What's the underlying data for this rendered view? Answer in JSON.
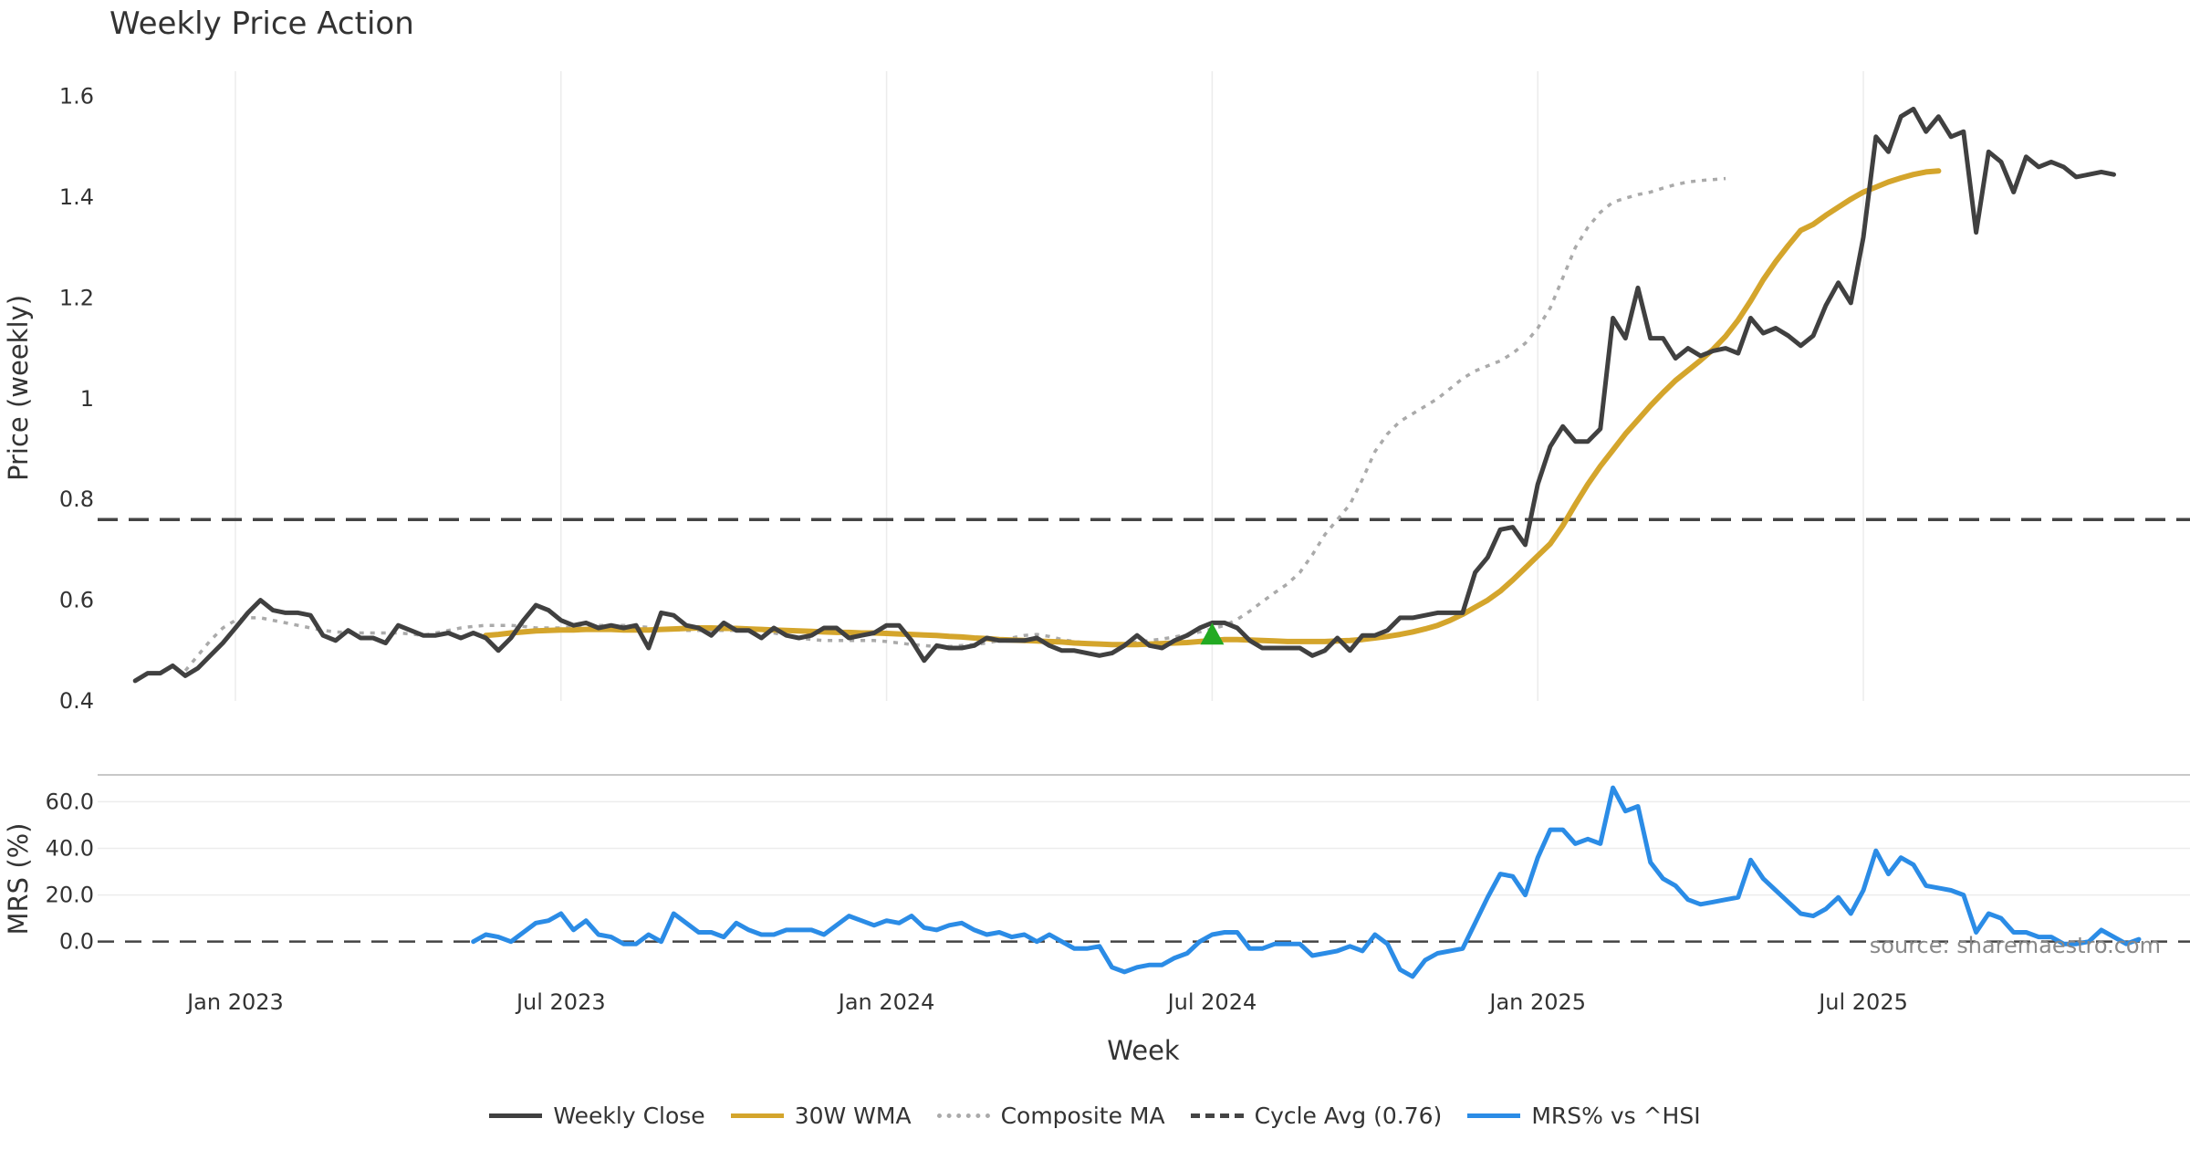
{
  "chart_data": {
    "type": "line",
    "title": "Weekly Price Action",
    "source": "source: sharemaestro.com",
    "xlabel": "Week",
    "x_ticks": [
      "Jan 2023",
      "Jul 2023",
      "Jan 2024",
      "Jul 2024",
      "Jan 2025",
      "Jul 2025"
    ],
    "x_tick_weeks": [
      11,
      37,
      63,
      89,
      115,
      141
    ],
    "n_weeks": 155,
    "price_panel": {
      "ylabel": "Price (weekly)",
      "ylim": [
        0.4,
        1.65
      ],
      "y_ticks": [
        "0.4",
        "0.6",
        "0.8",
        "1",
        "1.2",
        "1.4",
        "1.6"
      ],
      "y_tick_values": [
        0.4,
        0.6,
        0.8,
        1.0,
        1.2,
        1.4,
        1.6
      ],
      "signal_marker": {
        "week": 89,
        "value": 0.53,
        "shape": "triangle-up",
        "color": "#22aa22"
      },
      "series": [
        {
          "name": "Weekly Close",
          "color": "#404040",
          "style": "solid",
          "start_week": 3,
          "values": [
            0.44,
            0.455,
            0.455,
            0.47,
            0.45,
            0.465,
            0.49,
            0.515,
            0.545,
            0.575,
            0.6,
            0.58,
            0.575,
            0.575,
            0.57,
            0.53,
            0.52,
            0.54,
            0.525,
            0.525,
            0.515,
            0.55,
            0.54,
            0.53,
            0.53,
            0.535,
            0.525,
            0.535,
            0.525,
            0.5,
            0.525,
            0.56,
            0.59,
            0.58,
            0.56,
            0.55,
            0.555,
            0.545,
            0.55,
            0.545,
            0.55,
            0.505,
            0.575,
            0.57,
            0.55,
            0.545,
            0.53,
            0.555,
            0.54,
            0.54,
            0.525,
            0.545,
            0.53,
            0.525,
            0.53,
            0.545,
            0.545,
            0.525,
            0.53,
            0.535,
            0.55,
            0.55,
            0.52,
            0.48,
            0.51,
            0.505,
            0.505,
            0.51,
            0.525,
            0.52,
            0.52,
            0.52,
            0.525,
            0.51,
            0.5,
            0.5,
            0.495,
            0.49,
            0.495,
            0.51,
            0.53,
            0.51,
            0.505,
            0.52,
            0.53,
            0.545,
            0.555,
            0.555,
            0.545,
            0.52,
            0.505,
            0.505,
            0.505,
            0.505,
            0.49,
            0.5,
            0.525,
            0.5,
            0.53,
            0.53,
            0.54,
            0.565,
            0.565,
            0.57,
            0.575,
            0.575,
            0.575,
            0.655,
            0.685,
            0.74,
            0.745,
            0.71,
            0.83,
            0.905,
            0.945,
            0.915,
            0.915,
            0.94,
            1.16,
            1.12,
            1.22,
            1.12,
            1.12,
            1.08,
            1.1,
            1.085,
            1.095,
            1.1,
            1.09,
            1.16,
            1.13,
            1.14,
            1.125,
            1.105,
            1.125,
            1.185,
            1.23,
            1.19,
            1.32,
            1.52,
            1.49,
            1.56,
            1.575,
            1.53,
            1.56,
            1.52,
            1.53,
            1.33,
            1.49,
            1.47,
            1.41,
            1.48,
            1.46,
            1.47,
            1.46,
            1.44,
            1.445,
            1.45,
            1.445
          ]
        },
        {
          "name": "30W WMA",
          "color": "#d4a52c",
          "style": "solid",
          "start_week": 31,
          "values": [
            0.53,
            0.532,
            0.535,
            0.537,
            0.539,
            0.54,
            0.541,
            0.541,
            0.542,
            0.542,
            0.542,
            0.541,
            0.541,
            0.541,
            0.542,
            0.543,
            0.544,
            0.545,
            0.545,
            0.544,
            0.544,
            0.543,
            0.542,
            0.541,
            0.54,
            0.539,
            0.538,
            0.537,
            0.536,
            0.536,
            0.535,
            0.535,
            0.534,
            0.533,
            0.532,
            0.531,
            0.53,
            0.528,
            0.527,
            0.525,
            0.524,
            0.522,
            0.521,
            0.52,
            0.519,
            0.518,
            0.517,
            0.515,
            0.514,
            0.513,
            0.512,
            0.512,
            0.512,
            0.513,
            0.514,
            0.515,
            0.516,
            0.518,
            0.52,
            0.522,
            0.522,
            0.521,
            0.52,
            0.519,
            0.518,
            0.518,
            0.518,
            0.518,
            0.519,
            0.52,
            0.522,
            0.525,
            0.528,
            0.532,
            0.537,
            0.543,
            0.55,
            0.56,
            0.572,
            0.586,
            0.6,
            0.618,
            0.64,
            0.664,
            0.688,
            0.712,
            0.748,
            0.79,
            0.83,
            0.866,
            0.898,
            0.93,
            0.958,
            0.986,
            1.012,
            1.036,
            1.056,
            1.076,
            1.098,
            1.124,
            1.156,
            1.194,
            1.236,
            1.272,
            1.304,
            1.334,
            1.346,
            1.364,
            1.38,
            1.396,
            1.41,
            1.42,
            1.43,
            1.438,
            1.445,
            1.45,
            1.452
          ]
        },
        {
          "name": "Composite MA",
          "color": "#aaaaaa",
          "style": "dotted",
          "start_week": 7,
          "values": [
            0.46,
            0.49,
            0.52,
            0.545,
            0.56,
            0.565,
            0.565,
            0.56,
            0.555,
            0.55,
            0.545,
            0.54,
            0.537,
            0.536,
            0.535,
            0.535,
            0.535,
            0.535,
            0.533,
            0.53,
            0.535,
            0.54,
            0.545,
            0.548,
            0.55,
            0.55,
            0.55,
            0.548,
            0.545,
            0.545,
            0.545,
            0.548,
            0.55,
            0.55,
            0.55,
            0.55,
            0.548,
            0.546,
            0.544,
            0.542,
            0.54,
            0.54,
            0.54,
            0.54,
            0.54,
            0.54,
            0.54,
            0.535,
            0.53,
            0.525,
            0.522,
            0.52,
            0.52,
            0.52,
            0.52,
            0.52,
            0.518,
            0.515,
            0.512,
            0.51,
            0.508,
            0.508,
            0.51,
            0.512,
            0.515,
            0.52,
            0.525,
            0.53,
            0.532,
            0.528,
            0.522,
            0.518,
            0.515,
            0.512,
            0.512,
            0.514,
            0.517,
            0.52,
            0.523,
            0.527,
            0.532,
            0.537,
            0.543,
            0.55,
            0.562,
            0.578,
            0.597,
            0.615,
            0.632,
            0.655,
            0.69,
            0.73,
            0.76,
            0.79,
            0.84,
            0.895,
            0.93,
            0.955,
            0.97,
            0.985,
            1.0,
            1.02,
            1.04,
            1.055,
            1.065,
            1.075,
            1.09,
            1.11,
            1.14,
            1.18,
            1.24,
            1.3,
            1.34,
            1.37,
            1.39,
            1.398,
            1.405,
            1.41,
            1.418,
            1.425,
            1.43,
            1.433,
            1.435,
            1.437
          ]
        },
        {
          "name": "Cycle Avg (0.76)",
          "color": "#444444",
          "style": "dashed",
          "constant": 0.76
        }
      ]
    },
    "mrs_panel": {
      "ylabel": "MRS (%)",
      "ylim": [
        -15,
        68
      ],
      "y_ticks": [
        "0.0",
        "20.0",
        "40.0",
        "60.0"
      ],
      "y_tick_values": [
        0,
        20,
        40,
        60
      ],
      "zero_line": true,
      "series": [
        {
          "name": "MRS% vs ^HSI",
          "color": "#2b8ce6",
          "style": "solid",
          "start_week": 30,
          "values": [
            0,
            3,
            2,
            0,
            4,
            8,
            9,
            12,
            5,
            9,
            3,
            2,
            -1,
            -1,
            3,
            0,
            12,
            8,
            4,
            4,
            2,
            8,
            5,
            3,
            3,
            5,
            5,
            5,
            3,
            7,
            11,
            9,
            7,
            9,
            8,
            11,
            6,
            5,
            7,
            8,
            5,
            3,
            4,
            2,
            3,
            0,
            3,
            0,
            -3,
            -3,
            -2,
            -11,
            -13,
            -11,
            -10,
            -10,
            -7,
            -5,
            0,
            3,
            4,
            4,
            -3,
            -3,
            -1,
            -1,
            -1,
            -6,
            -5,
            -4,
            -2,
            -4,
            3,
            -1,
            -12,
            -15,
            -8,
            -5,
            -4,
            -3,
            8,
            19,
            29,
            28,
            20,
            36,
            48,
            48,
            42,
            44,
            42,
            66,
            56,
            58,
            34,
            27,
            24,
            18,
            16,
            17,
            18,
            19,
            35,
            27,
            22,
            17,
            12,
            11,
            14,
            19,
            12,
            22,
            39,
            29,
            36,
            33,
            24,
            23,
            22,
            20,
            4,
            12,
            10,
            4,
            4,
            2,
            2,
            -1,
            -1,
            0,
            5,
            2,
            -1,
            1
          ]
        }
      ]
    },
    "legend": [
      {
        "label": "Weekly Close",
        "color": "#404040",
        "style": "solid"
      },
      {
        "label": "30W WMA",
        "color": "#d4a52c",
        "style": "solid"
      },
      {
        "label": "Composite MA",
        "color": "#aaaaaa",
        "style": "dotted"
      },
      {
        "label": "Cycle Avg (0.76)",
        "color": "#444444",
        "style": "dashed"
      },
      {
        "label": "MRS% vs ^HSI",
        "color": "#2b8ce6",
        "style": "solid"
      }
    ]
  }
}
